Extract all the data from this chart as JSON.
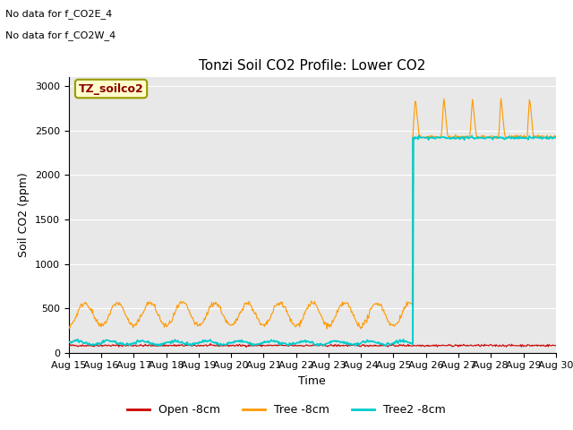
{
  "title": "Tonzi Soil CO2 Profile: Lower CO2",
  "xlabel": "Time",
  "ylabel": "Soil CO2 (ppm)",
  "ylim": [
    0,
    3100
  ],
  "yticks": [
    0,
    500,
    1000,
    1500,
    2000,
    2500,
    3000
  ],
  "bg_color": "#e8e8e8",
  "fig_bg_color": "#ffffff",
  "text_annotations": [
    "No data for f_CO2E_4",
    "No data for f_CO2W_4"
  ],
  "watermark": "TZ_soilco2",
  "legend_labels": [
    "Open -8cm",
    "Tree -8cm",
    "Tree2 -8cm"
  ],
  "legend_colors": [
    "#cc0000",
    "#ff9900",
    "#00cccc"
  ],
  "line_colors": {
    "open": "#cc0000",
    "tree": "#ff9900",
    "tree2": "#00cccc"
  },
  "date_labels": [
    "Aug 15",
    "Aug 16",
    "Aug 17",
    "Aug 18",
    "Aug 19",
    "Aug 20",
    "Aug 21",
    "Aug 22",
    "Aug 23",
    "Aug 24",
    "Aug 25",
    "Aug 26",
    "Aug 27",
    "Aug 28",
    "Aug 29",
    "Aug 30"
  ],
  "transition_day": 10.6,
  "n_days": 15,
  "open_base": 80,
  "tree_before_base": 430,
  "tree_before_amp": 130,
  "tree_after_base": 2430,
  "tree_after_spike": 450,
  "tree2_before_base": 110,
  "tree2_after_base": 2420
}
